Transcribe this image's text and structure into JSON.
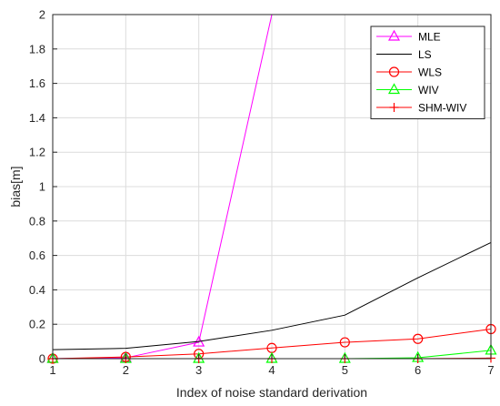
{
  "chart_data": {
    "type": "line",
    "title": "",
    "xlabel": "Index of noise standard derivation",
    "ylabel": "bias[m]",
    "xlim": [
      1,
      7
    ],
    "ylim": [
      0,
      2
    ],
    "xticks": [
      1,
      2,
      3,
      4,
      5,
      6,
      7
    ],
    "yticks": [
      0,
      0.2,
      0.4,
      0.6,
      0.8,
      1,
      1.2,
      1.4,
      1.6,
      1.8,
      2
    ],
    "ytick_labels": [
      "0",
      "0.2",
      "0.4",
      "0.6",
      "0.8",
      "1",
      "1.2",
      "1.4",
      "1.6",
      "1.8",
      "2"
    ],
    "grid": true,
    "legend_position": "top-right",
    "x": [
      1,
      2,
      3,
      4,
      5,
      6,
      7
    ],
    "series": [
      {
        "name": "MLE",
        "color": "#ff00ff",
        "marker": "triangle",
        "values": [
          0.0,
          0.005,
          0.095,
          2.0,
          null,
          null,
          null
        ]
      },
      {
        "name": "LS",
        "color": "#000000",
        "marker": "none",
        "values": [
          0.052,
          0.06,
          0.1,
          0.165,
          0.253,
          0.47,
          0.675
        ]
      },
      {
        "name": "WLS",
        "color": "#ff0000",
        "marker": "circle",
        "values": [
          0.0,
          0.01,
          0.028,
          0.062,
          0.095,
          0.115,
          0.172
        ]
      },
      {
        "name": "WIV",
        "color": "#00ff00",
        "marker": "triangle",
        "values": [
          0.0,
          0.0,
          0.0,
          0.0,
          0.0,
          0.005,
          0.048
        ]
      },
      {
        "name": "SHM-WIV",
        "color": "#ff0000",
        "marker": "plus",
        "values": [
          0.0,
          0.0,
          0.0,
          0.0,
          0.0,
          0.0,
          0.003
        ]
      }
    ]
  }
}
